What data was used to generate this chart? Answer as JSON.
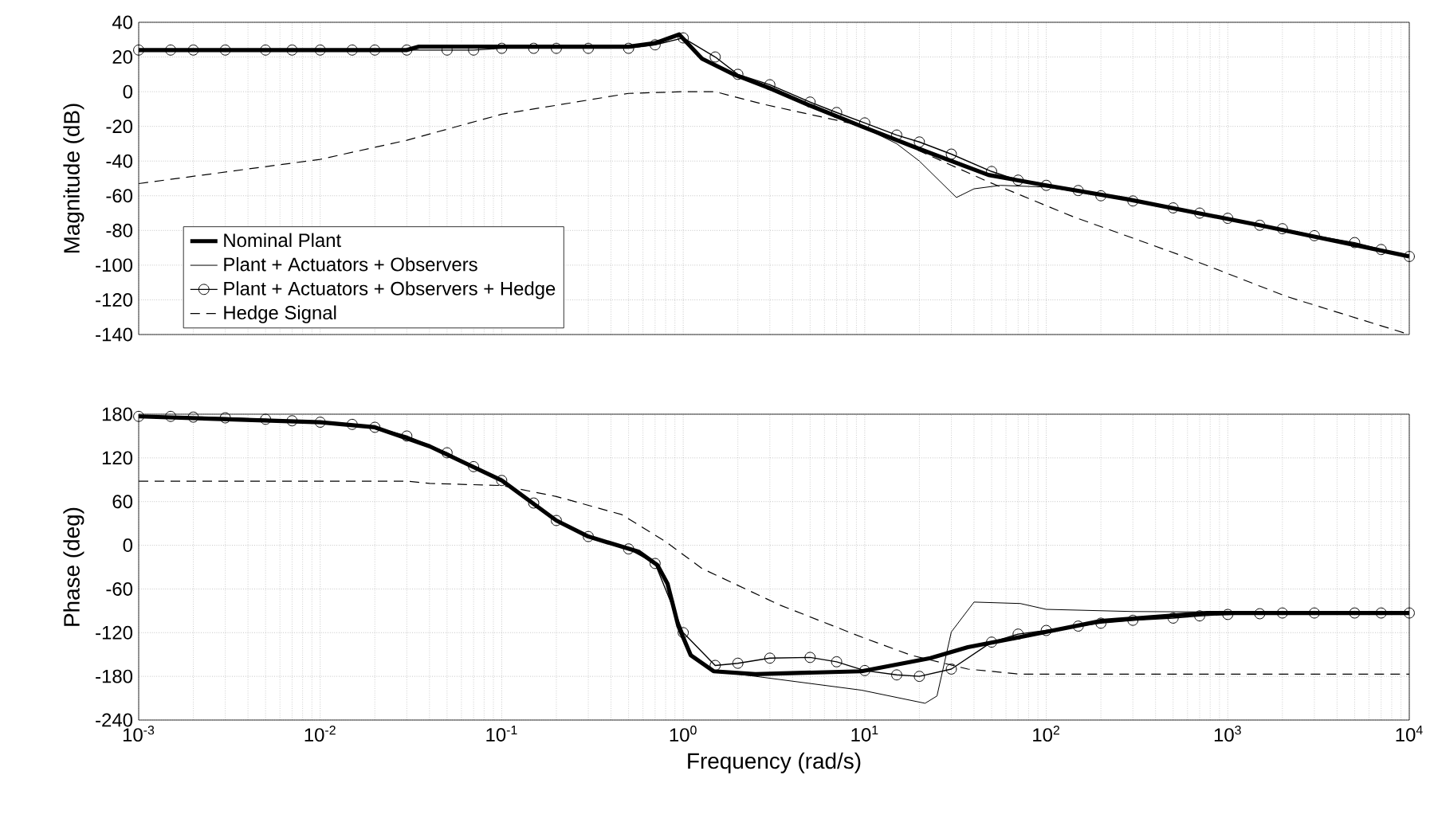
{
  "chart_data": [
    {
      "type": "line",
      "ylabel": "Magnitude (dB)",
      "log": "x",
      "grid": true,
      "legend": "bottom left",
      "tick_labels": "y",
      "xlim": [
        0.001,
        10000
      ],
      "ylim": [
        -140,
        40
      ],
      "xticks": [
        {
          "value": 0.001,
          "label": null
        },
        {
          "value": 0.01,
          "label": null
        },
        {
          "value": 0.1,
          "label": null
        },
        {
          "value": 1,
          "label": null
        },
        {
          "value": 10,
          "label": null
        },
        {
          "value": 100,
          "label": null
        },
        {
          "value": 1000,
          "label": null
        },
        {
          "value": 10000,
          "label": null
        }
      ],
      "yticks": [
        -140,
        -120,
        -100,
        -80,
        -60,
        -40,
        -20,
        0,
        20,
        40
      ],
      "series": [
        {
          "name": "Nominal Plant",
          "color": "#000000",
          "line_style": "solid",
          "marker": "none",
          "x": [
            0.001,
            0.03,
            0.035,
            0.5,
            0.7,
            0.95,
            1.27,
            1.9,
            3,
            5,
            9.6,
            20,
            48,
            100,
            280,
            1500,
            10000
          ],
          "values": [
            24,
            24,
            26,
            26,
            28,
            33,
            19,
            10,
            2,
            -8,
            -20,
            -33,
            -48,
            -54,
            -62,
            -77,
            -95
          ]
        },
        {
          "name": "Plant + Actuators + Observers",
          "color": "#000000",
          "line_style": "solid",
          "marker": "none",
          "x": [
            0.001,
            0.03,
            0.035,
            0.5,
            0.7,
            0.95,
            1.27,
            1.9,
            3,
            5,
            9.6,
            15,
            20,
            32,
            40,
            56,
            100,
            280,
            1500,
            10000
          ],
          "values": [
            24,
            24,
            26,
            26,
            28,
            33,
            19,
            10,
            2,
            -8,
            -20,
            -30,
            -40,
            -61,
            -56,
            -54,
            -55,
            -62,
            -77,
            -95
          ]
        },
        {
          "name": "Plant + Actuators + Observers + Hedge",
          "color": "#000000",
          "line_style": "solid",
          "marker": "circle",
          "x": [
            0.001,
            0.0015,
            0.002,
            0.003,
            0.005,
            0.007,
            0.01,
            0.015,
            0.02,
            0.03,
            0.05,
            0.07,
            0.1,
            0.15,
            0.2,
            0.3,
            0.5,
            0.7,
            1,
            1.5,
            2,
            3,
            5,
            7,
            10,
            15,
            20,
            30,
            50,
            70,
            100,
            150,
            200,
            300,
            500,
            700,
            1000,
            1500,
            2000,
            3000,
            5000,
            7000,
            10000
          ],
          "values": [
            24,
            24,
            24,
            24,
            24,
            24,
            24,
            24,
            24,
            24,
            24,
            24,
            25,
            25,
            25,
            25,
            25,
            27,
            31,
            20,
            10,
            4,
            -6,
            -12,
            -18,
            -25,
            -29,
            -36,
            -46,
            -51,
            -54,
            -57,
            -60,
            -63,
            -67,
            -70,
            -73,
            -77,
            -79,
            -83,
            -87,
            -91,
            -95
          ]
        },
        {
          "name": "Hedge Signal",
          "color": "#000000",
          "line_style": "dashed",
          "marker": "none",
          "x": [
            0.001,
            0.01,
            0.03,
            0.1,
            0.5,
            1,
            1.5,
            2.7,
            10,
            48,
            140,
            540,
            2100,
            10000
          ],
          "values": [
            -53,
            -39,
            -28,
            -13,
            -1,
            0,
            0,
            -7,
            -20,
            -52,
            -72,
            -94,
            -118,
            -140
          ]
        }
      ]
    },
    {
      "type": "line",
      "xlabel": "Frequency (rad/s)",
      "ylabel": "Phase (deg)",
      "log": "x",
      "grid": true,
      "xlim": [
        0.001,
        10000
      ],
      "ylim": [
        -240,
        180
      ],
      "xticks": [
        {
          "value": 0.001,
          "label": "10$^{-3}$"
        },
        {
          "value": 0.01,
          "label": "10$^{-2}$"
        },
        {
          "value": 0.1,
          "label": "10$^{-1}$"
        },
        {
          "value": 1,
          "label": "10$^{0}$"
        },
        {
          "value": 10,
          "label": "10$^{1}$"
        },
        {
          "value": 100,
          "label": "10$^{2}$"
        },
        {
          "value": 1000,
          "label": "10$^{3}$"
        },
        {
          "value": 10000,
          "label": "10$^{4}$"
        }
      ],
      "yticks": [
        -240,
        -180,
        -120,
        -60,
        0,
        60,
        120,
        180
      ],
      "series": [
        {
          "color": "#000000",
          "line_style": "solid",
          "marker": "none",
          "x": [
            0.001,
            0.01,
            0.02,
            0.04,
            0.1,
            0.2,
            0.3,
            0.57,
            0.72,
            0.82,
            0.94,
            1.1,
            1.47,
            2.5,
            9.6,
            23,
            37,
            72,
            200,
            770,
            10000
          ],
          "values": [
            177,
            169,
            162,
            136,
            89,
            34,
            12,
            -9,
            -27,
            -53,
            -111,
            -151,
            -173,
            -177,
            -173,
            -155,
            -140,
            -126,
            -104,
            -93,
            -93
          ]
        },
        {
          "color": "#000000",
          "line_style": "solid",
          "marker": "none",
          "x": [
            0.001,
            0.01,
            0.02,
            0.04,
            0.1,
            0.2,
            0.3,
            0.57,
            0.72,
            0.82,
            0.94,
            1.1,
            1.47,
            2.5,
            9.6,
            21.5,
            25,
            30,
            40,
            72,
            100,
            300,
            10000
          ],
          "values": [
            177,
            169,
            162,
            136,
            89,
            34,
            12,
            -9,
            -27,
            -53,
            -111,
            -151,
            -173,
            -180,
            -199,
            -217,
            -207,
            -119,
            -78,
            -80,
            -88,
            -91,
            -93
          ]
        },
        {
          "color": "#000000",
          "line_style": "solid",
          "marker": "circle",
          "x": [
            0.001,
            0.0015,
            0.002,
            0.003,
            0.005,
            0.007,
            0.01,
            0.015,
            0.02,
            0.03,
            0.05,
            0.07,
            0.1,
            0.15,
            0.2,
            0.3,
            0.5,
            0.7,
            1,
            1.5,
            2,
            3,
            5,
            7,
            10,
            15,
            20,
            30,
            50,
            70,
            100,
            150,
            200,
            300,
            500,
            700,
            1000,
            1500,
            2000,
            3000,
            5000,
            7000,
            10000
          ],
          "values": [
            177,
            177,
            176,
            175,
            173,
            171,
            169,
            166,
            162,
            150,
            127,
            108,
            89,
            58,
            34,
            12,
            -5,
            -25,
            -120,
            -165,
            -162,
            -155,
            -154,
            -160,
            -172,
            -178,
            -180,
            -170,
            -133,
            -122,
            -117,
            -111,
            -107,
            -103,
            -100,
            -97,
            -95,
            -94,
            -93,
            -93,
            -93,
            -93,
            -93
          ]
        },
        {
          "color": "#000000",
          "line_style": "dashed",
          "marker": "none",
          "x": [
            0.001,
            0.03,
            0.04,
            0.1,
            0.2,
            0.46,
            0.8,
            1.27,
            3.4,
            9.6,
            18,
            37,
            72,
            10000
          ],
          "values": [
            88,
            88,
            85,
            82,
            67,
            42,
            5,
            -32,
            -82,
            -126,
            -151,
            -170,
            -177,
            -177
          ]
        }
      ]
    }
  ]
}
